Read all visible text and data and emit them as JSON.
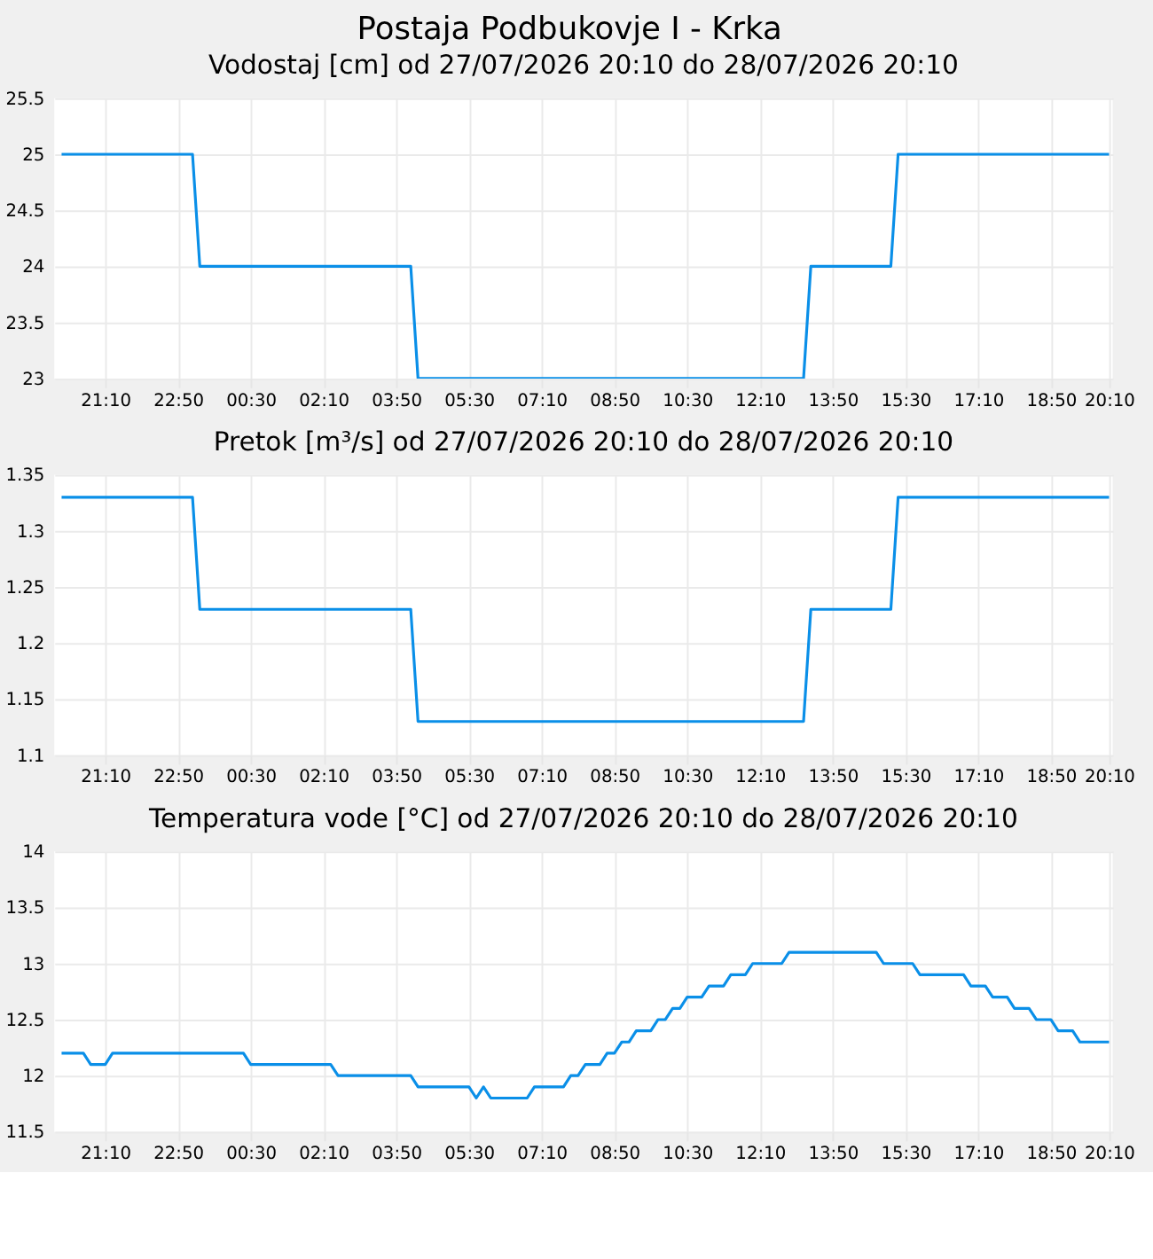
{
  "chart_data": [
    {
      "type": "line",
      "title": "Postaja Podbukovje I - Krka",
      "subtitle": "Vodostaj [cm] od 27/07/2026 20:10 do 28/07/2026 20:10",
      "x": [
        "2026-07-27T20:10",
        "2026-07-27T23:10",
        "2026-07-27T23:20",
        "2026-07-28T04:10",
        "2026-07-28T04:20",
        "2026-07-28T13:10",
        "2026-07-28T13:20",
        "2026-07-28T15:10",
        "2026-07-28T15:20",
        "2026-07-28T20:10"
      ],
      "series": [
        {
          "color": "#0a8fe8",
          "values": [
            25,
            25,
            24,
            24,
            23,
            23,
            24,
            24,
            25,
            25
          ]
        }
      ],
      "xlim": [
        "2026-07-27T20:00",
        "2026-07-28T20:15"
      ],
      "xticks": [
        {
          "value": "2026-07-27T21:10",
          "label": "21:10"
        },
        {
          "value": "2026-07-27T22:50",
          "label": "22:50"
        },
        {
          "value": "2026-07-28T00:30",
          "label": "00:30"
        },
        {
          "value": "2026-07-28T02:10",
          "label": "02:10"
        },
        {
          "value": "2026-07-28T03:50",
          "label": "03:50"
        },
        {
          "value": "2026-07-28T05:30",
          "label": "05:30"
        },
        {
          "value": "2026-07-28T07:10",
          "label": "07:10"
        },
        {
          "value": "2026-07-28T08:50",
          "label": "08:50"
        },
        {
          "value": "2026-07-28T10:30",
          "label": "10:30"
        },
        {
          "value": "2026-07-28T12:10",
          "label": "12:10"
        },
        {
          "value": "2026-07-28T13:50",
          "label": "13:50"
        },
        {
          "value": "2026-07-28T15:30",
          "label": "15:30"
        },
        {
          "value": "2026-07-28T17:10",
          "label": "17:10"
        },
        {
          "value": "2026-07-28T18:50",
          "label": "18:50"
        },
        {
          "value": "2026-07-28T20:10",
          "label": "20:10"
        }
      ],
      "ylim": [
        23,
        25.5
      ],
      "yticks": [
        23,
        23.5,
        24,
        24.5,
        25,
        25.5
      ],
      "grid": true,
      "marker": "none",
      "line_style": "solid"
    },
    {
      "type": "line",
      "title": "Pretok [m³/s] od 27/07/2026 20:10 do 28/07/2026 20:10",
      "x": [
        "2026-07-27T20:10",
        "2026-07-27T23:10",
        "2026-07-27T23:20",
        "2026-07-28T04:10",
        "2026-07-28T04:20",
        "2026-07-28T13:10",
        "2026-07-28T13:20",
        "2026-07-28T15:10",
        "2026-07-28T15:20",
        "2026-07-28T20:10"
      ],
      "series": [
        {
          "color": "#0a8fe8",
          "values": [
            1.33,
            1.33,
            1.23,
            1.23,
            1.13,
            1.13,
            1.23,
            1.23,
            1.33,
            1.33
          ]
        }
      ],
      "xlim": [
        "2026-07-27T20:00",
        "2026-07-28T20:15"
      ],
      "xticks": [
        {
          "value": "2026-07-27T21:10",
          "label": "21:10"
        },
        {
          "value": "2026-07-27T22:50",
          "label": "22:50"
        },
        {
          "value": "2026-07-28T00:30",
          "label": "00:30"
        },
        {
          "value": "2026-07-28T02:10",
          "label": "02:10"
        },
        {
          "value": "2026-07-28T03:50",
          "label": "03:50"
        },
        {
          "value": "2026-07-28T05:30",
          "label": "05:30"
        },
        {
          "value": "2026-07-28T07:10",
          "label": "07:10"
        },
        {
          "value": "2026-07-28T08:50",
          "label": "08:50"
        },
        {
          "value": "2026-07-28T10:30",
          "label": "10:30"
        },
        {
          "value": "2026-07-28T12:10",
          "label": "12:10"
        },
        {
          "value": "2026-07-28T13:50",
          "label": "13:50"
        },
        {
          "value": "2026-07-28T15:30",
          "label": "15:30"
        },
        {
          "value": "2026-07-28T17:10",
          "label": "17:10"
        },
        {
          "value": "2026-07-28T18:50",
          "label": "18:50"
        },
        {
          "value": "2026-07-28T20:10",
          "label": "20:10"
        }
      ],
      "ylim": [
        1.1,
        1.35
      ],
      "yticks": [
        1.1,
        1.15,
        1.2,
        1.25,
        1.3,
        1.35
      ],
      "grid": true,
      "marker": "none",
      "line_style": "solid"
    },
    {
      "type": "line",
      "title": "Temperatura vode [°C] od 27/07/2026 20:10 do 28/07/2026 20:10",
      "x": [
        "2026-07-27T20:10",
        "2026-07-27T20:40",
        "2026-07-27T20:50",
        "2026-07-27T21:10",
        "2026-07-27T21:20",
        "2026-07-28T00:20",
        "2026-07-28T00:30",
        "2026-07-28T02:20",
        "2026-07-28T02:30",
        "2026-07-28T04:10",
        "2026-07-28T04:20",
        "2026-07-28T05:30",
        "2026-07-28T05:40",
        "2026-07-28T05:50",
        "2026-07-28T06:00",
        "2026-07-28T06:50",
        "2026-07-28T07:00",
        "2026-07-28T07:40",
        "2026-07-28T07:50",
        "2026-07-28T08:00",
        "2026-07-28T08:10",
        "2026-07-28T08:30",
        "2026-07-28T08:40",
        "2026-07-28T08:50",
        "2026-07-28T09:00",
        "2026-07-28T09:10",
        "2026-07-28T09:20",
        "2026-07-28T09:40",
        "2026-07-28T09:50",
        "2026-07-28T10:00",
        "2026-07-28T10:10",
        "2026-07-28T10:20",
        "2026-07-28T10:30",
        "2026-07-28T10:50",
        "2026-07-28T11:00",
        "2026-07-28T11:20",
        "2026-07-28T11:30",
        "2026-07-28T11:50",
        "2026-07-28T12:00",
        "2026-07-28T12:40",
        "2026-07-28T12:50",
        "2026-07-28T14:50",
        "2026-07-28T15:00",
        "2026-07-28T15:40",
        "2026-07-28T15:50",
        "2026-07-28T16:50",
        "2026-07-28T17:00",
        "2026-07-28T17:20",
        "2026-07-28T17:30",
        "2026-07-28T17:50",
        "2026-07-28T18:00",
        "2026-07-28T18:20",
        "2026-07-28T18:30",
        "2026-07-28T18:50",
        "2026-07-28T19:00",
        "2026-07-28T19:20",
        "2026-07-28T19:30",
        "2026-07-28T20:10"
      ],
      "series": [
        {
          "color": "#0a8fe8",
          "values": [
            12.2,
            12.2,
            12.1,
            12.1,
            12.2,
            12.2,
            12.1,
            12.1,
            12.0,
            12.0,
            11.9,
            11.9,
            11.8,
            11.9,
            11.8,
            11.8,
            11.9,
            11.9,
            12.0,
            12.0,
            12.1,
            12.1,
            12.2,
            12.2,
            12.3,
            12.3,
            12.4,
            12.4,
            12.5,
            12.5,
            12.6,
            12.6,
            12.7,
            12.7,
            12.8,
            12.8,
            12.9,
            12.9,
            13.0,
            13.0,
            13.1,
            13.1,
            13.0,
            13.0,
            12.9,
            12.9,
            12.8,
            12.8,
            12.7,
            12.7,
            12.6,
            12.6,
            12.5,
            12.5,
            12.4,
            12.4,
            12.3,
            12.3
          ]
        }
      ],
      "xlim": [
        "2026-07-27T20:00",
        "2026-07-28T20:15"
      ],
      "xticks": [
        {
          "value": "2026-07-27T21:10",
          "label": "21:10"
        },
        {
          "value": "2026-07-27T22:50",
          "label": "22:50"
        },
        {
          "value": "2026-07-28T00:30",
          "label": "00:30"
        },
        {
          "value": "2026-07-28T02:10",
          "label": "02:10"
        },
        {
          "value": "2026-07-28T03:50",
          "label": "03:50"
        },
        {
          "value": "2026-07-28T05:30",
          "label": "05:30"
        },
        {
          "value": "2026-07-28T07:10",
          "label": "07:10"
        },
        {
          "value": "2026-07-28T08:50",
          "label": "08:50"
        },
        {
          "value": "2026-07-28T10:30",
          "label": "10:30"
        },
        {
          "value": "2026-07-28T12:10",
          "label": "12:10"
        },
        {
          "value": "2026-07-28T13:50",
          "label": "13:50"
        },
        {
          "value": "2026-07-28T15:30",
          "label": "15:30"
        },
        {
          "value": "2026-07-28T17:10",
          "label": "17:10"
        },
        {
          "value": "2026-07-28T18:50",
          "label": "18:50"
        },
        {
          "value": "2026-07-28T20:10",
          "label": "20:10"
        }
      ],
      "ylim": [
        11.5,
        14
      ],
      "yticks": [
        11.5,
        12,
        12.5,
        13,
        13.5,
        14
      ],
      "grid": true,
      "marker": "none",
      "line_style": "solid"
    }
  ]
}
